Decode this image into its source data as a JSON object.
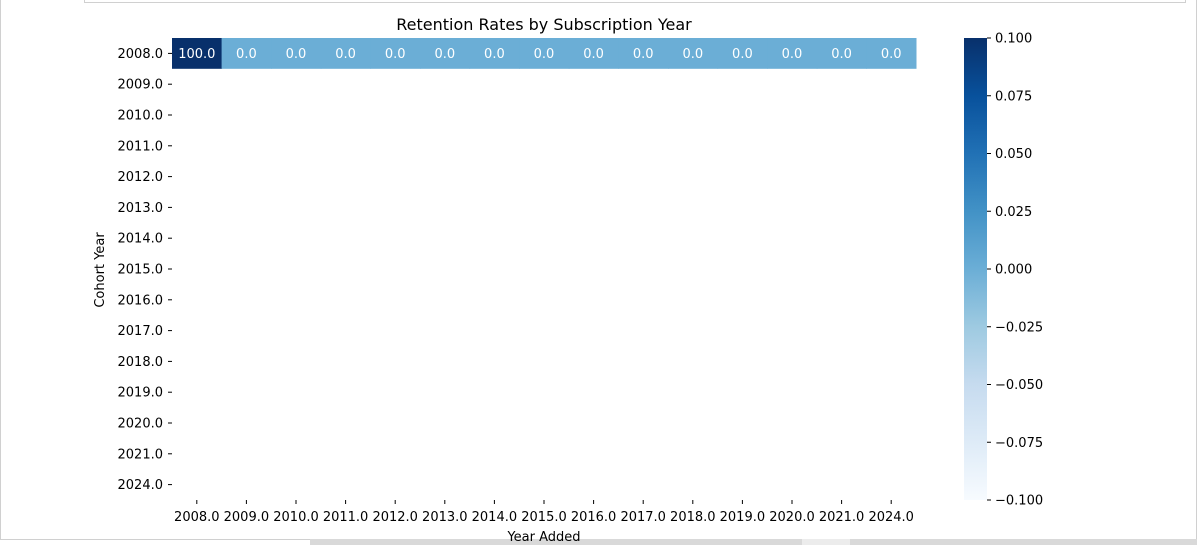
{
  "chart_data": {
    "type": "heatmap",
    "title": "Retention Rates by Subscription Year",
    "xlabel": "Year Added",
    "ylabel": "Cohort Year",
    "x_categories": [
      "2008.0",
      "2009.0",
      "2010.0",
      "2011.0",
      "2012.0",
      "2013.0",
      "2014.0",
      "2015.0",
      "2016.0",
      "2017.0",
      "2018.0",
      "2019.0",
      "2020.0",
      "2021.0",
      "2024.0"
    ],
    "y_categories": [
      "2008.0",
      "2009.0",
      "2010.0",
      "2011.0",
      "2012.0",
      "2013.0",
      "2014.0",
      "2015.0",
      "2016.0",
      "2017.0",
      "2018.0",
      "2019.0",
      "2020.0",
      "2021.0",
      "2024.0"
    ],
    "cells": [
      {
        "row": 0,
        "values": [
          100.0,
          0.0,
          0.0,
          0.0,
          0.0,
          0.0,
          0.0,
          0.0,
          0.0,
          0.0,
          0.0,
          0.0,
          0.0,
          0.0,
          0.0
        ]
      }
    ],
    "cell_labels": [
      "100.0",
      "0.0",
      "0.0",
      "0.0",
      "0.0",
      "0.0",
      "0.0",
      "0.0",
      "0.0",
      "0.0",
      "0.0",
      "0.0",
      "0.0",
      "0.0",
      "0.0"
    ],
    "colorbar": {
      "range": [
        -0.1,
        0.1
      ],
      "ticks": [
        "0.100",
        "0.075",
        "0.050",
        "0.025",
        "0.000",
        "−0.025",
        "−0.050",
        "−0.075",
        "−0.100"
      ],
      "colormap": "Blues"
    },
    "colors": {
      "high": "#08306b",
      "zero": "#6baed6",
      "low": "#f7fbff",
      "annotation_text": "#ffffff",
      "axis_text": "#000000"
    }
  }
}
